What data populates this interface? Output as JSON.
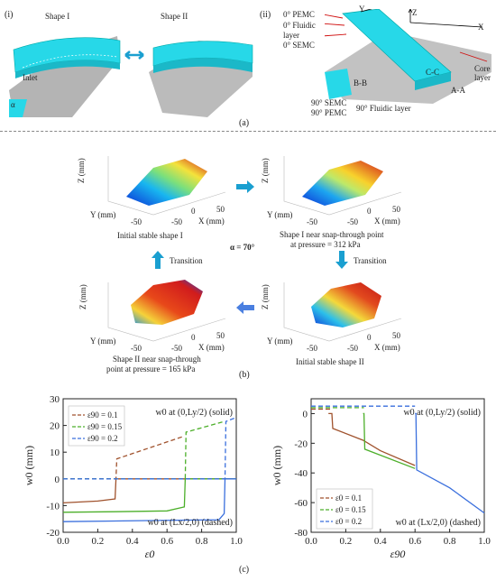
{
  "panel_a": {
    "label_i": "(i)",
    "label_ii": "(ii)",
    "shape_1": "Shape I",
    "shape_2": "Shape II",
    "inlet": "Inlet",
    "alpha": "α",
    "layers_left": [
      "0° PEMC",
      "0° Fluidic",
      "layer",
      "0° SEMC"
    ],
    "layers_bottom": [
      "90° SEMC",
      "90° PEMC",
      "90° Fluidic layer"
    ],
    "axis_x": "X",
    "axis_y": "Y",
    "axis_z": "Z",
    "core_layer": [
      "Core",
      "layer"
    ],
    "section_aa": "A-A",
    "section_bb": "B-B",
    "section_cc": "C-C",
    "caption": "(a)"
  },
  "panel_b": {
    "plot_axes": {
      "z": "Z (mm)",
      "y": "Y (mm)",
      "x": "X (mm)",
      "tick_neg50": "-50",
      "tick_0": "0",
      "tick_50": "50"
    },
    "captions": {
      "tl": "Initial stable shape I",
      "tr": [
        "Shape I near snap-through point",
        "at pressure = 312 kPa"
      ],
      "bl": [
        "Shape II near snap-through",
        "point at pressure = 165 kPa"
      ],
      "br": "Initial stable shape II"
    },
    "alpha_value": "α = 70°",
    "transition": "Transition",
    "caption": "(b)"
  },
  "panel_c": {
    "caption": "(c)",
    "colors": {
      "brown": "#a0522d",
      "green": "#4caf2a",
      "blue": "#3a6fdd"
    }
  },
  "chart_data": [
    {
      "type": "line",
      "xlabel": "ε0",
      "ylabel": "w0 (mm)",
      "xlim": [
        0,
        1.0
      ],
      "ylim": [
        -20,
        30
      ],
      "xticks": [
        "0.0",
        "0.2",
        "0.4",
        "0.6",
        "0.8",
        "1.0"
      ],
      "yticks": [
        "-20",
        "-10",
        "0",
        "10",
        "20",
        "30"
      ],
      "annotation_solid": "w0 at (0,Ly/2) (solid)",
      "annotation_dashed": "w0 at (Lx/2,0) (dashed)",
      "legend": [
        "ε90 = 0.1",
        "ε90 = 0.15",
        "ε90 = 0.2"
      ],
      "legend_position": "top-left",
      "series": [
        {
          "name": "ε90 = 0.1",
          "style": "solid",
          "x": [
            0,
            0.2,
            0.3,
            0.305,
            1.0
          ],
          "y": [
            -9,
            -8.3,
            -7.5,
            0,
            0
          ]
        },
        {
          "name": "ε90 = 0.1",
          "style": "dashed",
          "x": [
            0,
            0.305,
            0.31,
            0.7
          ],
          "y": [
            0,
            0,
            7.5,
            16
          ]
        },
        {
          "name": "ε90 = 0.15",
          "style": "solid",
          "x": [
            0,
            0.3,
            0.6,
            0.7,
            0.705,
            1.0
          ],
          "y": [
            -12.5,
            -12.3,
            -12,
            -10.5,
            0,
            0
          ]
        },
        {
          "name": "ε90 = 0.15",
          "style": "dashed",
          "x": [
            0,
            0.705,
            0.71,
            0.93
          ],
          "y": [
            0,
            0,
            17.5,
            21.5
          ]
        },
        {
          "name": "ε90 = 0.2",
          "style": "solid",
          "x": [
            0,
            0.5,
            0.9,
            0.93,
            0.935,
            1.0
          ],
          "y": [
            -16,
            -15.6,
            -15.3,
            -13,
            0,
            0
          ]
        },
        {
          "name": "ε90 = 0.2",
          "style": "dashed",
          "x": [
            0,
            0.935,
            0.94,
            1.0
          ],
          "y": [
            0,
            0,
            21.5,
            23
          ]
        }
      ]
    },
    {
      "type": "line",
      "xlabel": "ε90",
      "ylabel": "w0 (mm)",
      "xlim": [
        0,
        1.0
      ],
      "ylim": [
        -80,
        10
      ],
      "xticks": [
        "0.0",
        "0.2",
        "0.4",
        "0.6",
        "0.8",
        "1.0"
      ],
      "yticks": [
        "-80",
        "-60",
        "-40",
        "-20",
        "0"
      ],
      "annotation_solid": "w0 at (0,Ly/2) (solid)",
      "annotation_dashed": "w0 at (Lx/2,0) (dashed)",
      "legend": [
        "ε0 = 0.1",
        "ε0 = 0.15",
        "ε0 = 0.2"
      ],
      "legend_position": "bottom-left",
      "series": [
        {
          "name": "ε0 = 0.1",
          "style": "solid",
          "x": [
            0.1,
            0.12,
            0.125,
            0.3,
            0.4,
            0.6
          ],
          "y": [
            0,
            0,
            -10,
            -18,
            -25,
            -35
          ]
        },
        {
          "name": "ε0 = 0.1",
          "style": "dashed",
          "x": [
            0,
            0.12
          ],
          "y": [
            3,
            3
          ]
        },
        {
          "name": "ε0 = 0.15",
          "style": "solid",
          "x": [
            0.3,
            0.305,
            0.31,
            0.6
          ],
          "y": [
            0,
            0,
            -24,
            -37
          ]
        },
        {
          "name": "ε0 = 0.15",
          "style": "dashed",
          "x": [
            0,
            0.305
          ],
          "y": [
            4,
            4
          ]
        },
        {
          "name": "ε0 = 0.2",
          "style": "solid",
          "x": [
            0.6,
            0.605,
            0.61,
            0.8,
            1.0
          ],
          "y": [
            0,
            0,
            -38,
            -50,
            -67
          ]
        },
        {
          "name": "ε0 = 0.2",
          "style": "dashed",
          "x": [
            0,
            0.6
          ],
          "y": [
            5,
            5
          ]
        }
      ]
    }
  ]
}
